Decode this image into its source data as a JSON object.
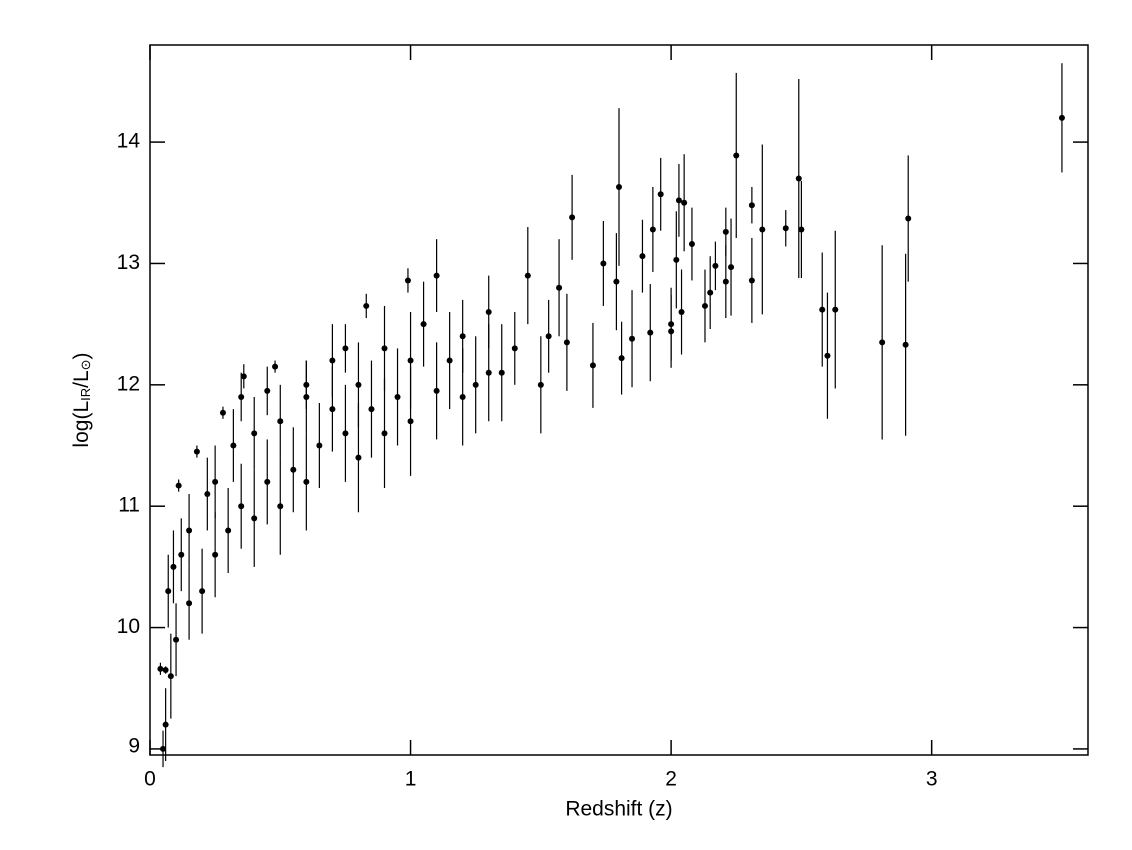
{
  "chart_data": {
    "type": "scatter",
    "x_label": "Redshift (z)",
    "y_label_parts": [
      "log(L",
      "IR",
      "/L",
      "⊙",
      ")"
    ],
    "xlim": [
      0,
      3.6
    ],
    "ylim": [
      8.95,
      14.8
    ],
    "xticks": [
      0,
      1,
      2,
      3
    ],
    "yticks": [
      9,
      10,
      11,
      12,
      13,
      14
    ],
    "color": "#000000",
    "x": [
      3.5,
      2.91,
      2.9,
      2.81,
      2.63,
      2.6,
      2.58,
      2.5,
      2.49,
      2.44,
      2.35,
      2.31,
      2.31,
      2.25,
      2.23,
      2.21,
      2.21,
      2.17,
      2.15,
      2.13,
      2.08,
      2.05,
      2.03,
      2.04,
      2.02,
      2.0,
      2.0,
      1.96,
      1.93,
      1.92,
      1.89,
      1.85,
      1.8,
      1.81,
      1.79,
      1.74,
      1.7,
      1.62,
      1.6,
      1.57,
      1.53,
      1.45,
      1.4,
      1.35,
      1.3,
      1.25,
      1.2,
      1.15,
      1.1,
      1.05,
      1.0,
      0.99,
      0.95,
      0.9,
      0.85,
      0.83,
      0.8,
      0.75,
      0.7,
      0.65,
      0.6,
      0.55,
      0.5,
      0.48,
      0.45,
      0.4,
      0.36,
      0.35,
      0.32,
      0.3,
      0.28,
      0.25,
      0.22,
      0.2,
      0.18,
      0.15,
      0.12,
      0.11,
      0.1,
      0.09,
      0.08,
      0.07,
      0.06,
      0.05,
      0.04,
      0.06,
      1.5,
      0.6,
      0.8,
      1.0,
      1.2,
      0.4,
      0.25,
      0.15,
      0.9,
      0.7,
      0.5,
      1.3,
      1.1,
      0.35,
      0.45,
      0.6,
      0.75
    ],
    "values": [
      14.2,
      13.37,
      12.33,
      12.35,
      12.62,
      12.24,
      12.62,
      13.28,
      13.7,
      13.29,
      13.28,
      13.48,
      12.86,
      13.89,
      12.97,
      13.26,
      12.85,
      12.98,
      12.76,
      12.65,
      13.16,
      13.5,
      13.52,
      12.6,
      13.03,
      12.44,
      12.5,
      13.57,
      13.28,
      12.43,
      13.06,
      12.38,
      13.63,
      12.22,
      12.85,
      13.0,
      12.16,
      13.38,
      12.35,
      12.8,
      12.4,
      12.9,
      12.3,
      12.1,
      12.6,
      12.0,
      12.4,
      12.2,
      12.9,
      12.5,
      12.2,
      12.86,
      11.9,
      12.3,
      11.8,
      12.65,
      12.0,
      11.6,
      12.2,
      11.5,
      11.9,
      11.3,
      11.7,
      12.15,
      11.2,
      11.6,
      12.07,
      11.0,
      11.5,
      10.8,
      11.77,
      10.6,
      11.1,
      10.3,
      11.45,
      10.2,
      10.6,
      11.17,
      9.9,
      10.5,
      9.6,
      10.3,
      9.2,
      9.0,
      9.66,
      9.65,
      12.0,
      11.2,
      11.4,
      11.7,
      11.9,
      10.9,
      11.2,
      10.8,
      11.6,
      11.8,
      11.0,
      12.1,
      11.95,
      11.9,
      11.95,
      12.0,
      12.3
    ],
    "errors": [
      0.45,
      0.52,
      0.75,
      0.8,
      0.65,
      0.52,
      0.47,
      0.4,
      0.82,
      0.15,
      0.7,
      0.15,
      0.35,
      0.68,
      0.4,
      0.2,
      0.3,
      0.2,
      0.3,
      0.3,
      0.3,
      0.4,
      0.3,
      0.35,
      0.4,
      0.3,
      0.3,
      0.3,
      0.35,
      0.4,
      0.3,
      0.4,
      0.65,
      0.3,
      0.4,
      0.35,
      0.35,
      0.35,
      0.4,
      0.4,
      0.3,
      0.4,
      0.3,
      0.4,
      0.3,
      0.4,
      0.3,
      0.4,
      0.3,
      0.35,
      0.4,
      0.1,
      0.4,
      0.35,
      0.4,
      0.1,
      0.35,
      0.4,
      0.3,
      0.35,
      0.3,
      0.35,
      0.3,
      0.05,
      0.35,
      0.3,
      0.1,
      0.35,
      0.3,
      0.35,
      0.05,
      0.35,
      0.3,
      0.35,
      0.05,
      0.3,
      0.3,
      0.05,
      0.3,
      0.3,
      0.35,
      0.3,
      0.3,
      0.15,
      0.05,
      0.03,
      0.4,
      0.4,
      0.45,
      0.45,
      0.4,
      0.4,
      0.3,
      0.3,
      0.45,
      0.35,
      0.4,
      0.4,
      0.4,
      0.2,
      0.2,
      0.2,
      0.2
    ]
  }
}
